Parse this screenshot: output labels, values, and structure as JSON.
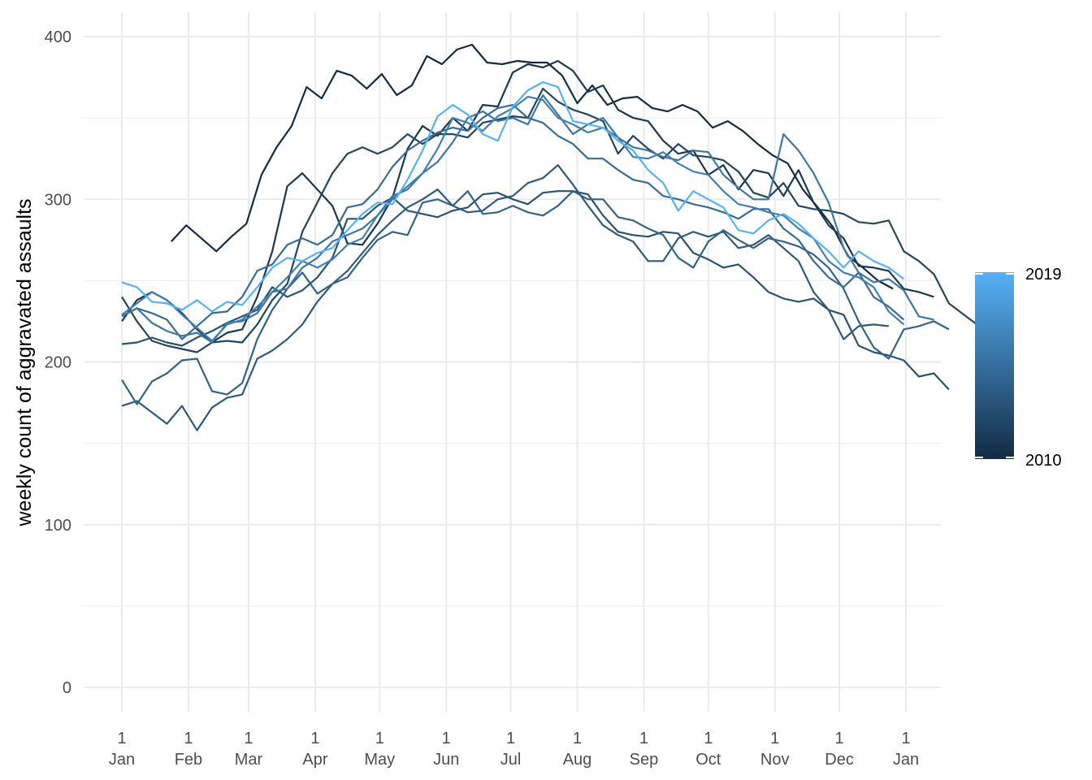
{
  "chart_data": {
    "type": "line",
    "title": "",
    "xlabel": "",
    "ylabel": "weekly count of aggravated assaults",
    "ylim": [
      0,
      400
    ],
    "y_ticks": [
      0,
      100,
      200,
      300,
      400
    ],
    "x_unit": "day of year",
    "xlim": [
      1,
      366
    ],
    "x_ticks": [
      {
        "x": 1,
        "day": "1",
        "month": "Jan"
      },
      {
        "x": 32,
        "day": "1",
        "month": "Feb"
      },
      {
        "x": 60,
        "day": "1",
        "month": "Mar"
      },
      {
        "x": 91,
        "day": "1",
        "month": "Apr"
      },
      {
        "x": 121,
        "day": "1",
        "month": "May"
      },
      {
        "x": 152,
        "day": "1",
        "month": "Jun"
      },
      {
        "x": 182,
        "day": "1",
        "month": "Jul"
      },
      {
        "x": 213,
        "day": "1",
        "month": "Aug"
      },
      {
        "x": 244,
        "day": "1",
        "month": "Sep"
      },
      {
        "x": 274,
        "day": "1",
        "month": "Oct"
      },
      {
        "x": 305,
        "day": "1",
        "month": "Nov"
      },
      {
        "x": 335,
        "day": "1",
        "month": "Dec"
      },
      {
        "x": 366,
        "day": "1",
        "month": "Jan"
      }
    ],
    "grid": true,
    "legend": {
      "type": "colorbar",
      "position": "right",
      "min_label": "2010",
      "max_label": "2019",
      "color_low": "#132B43",
      "color_high": "#56B1F7"
    },
    "series": [
      {
        "year": 2010,
        "color": "#132B43",
        "x_start": 24,
        "x_step": 7,
        "values": [
          274,
          284,
          276,
          268,
          277,
          285,
          315,
          332,
          345,
          369,
          362,
          379,
          376,
          368,
          377,
          364,
          370,
          388,
          383,
          392,
          395,
          384,
          383,
          385,
          384,
          384,
          376,
          359,
          370,
          358,
          362,
          363,
          356,
          354,
          358,
          354,
          344,
          348,
          342,
          334,
          327,
          322,
          306,
          295,
          283,
          265,
          258,
          250,
          245
        ]
      },
      {
        "year": 2011,
        "color": "#1B3850",
        "x_start": 1,
        "x_step": 7,
        "values": [
          225,
          238,
          243,
          238,
          230,
          220,
          212,
          218,
          220,
          240,
          268,
          308,
          316,
          306,
          296,
          273,
          272,
          285,
          301,
          331,
          345,
          339,
          350,
          342,
          358,
          357,
          378,
          383,
          381,
          385,
          379,
          366,
          370,
          355,
          350,
          348,
          336,
          328,
          330,
          315,
          321,
          306,
          318,
          316,
          302,
          318,
          298,
          284,
          276,
          259,
          258,
          256,
          245,
          243,
          240
        ]
      },
      {
        "year": 2012,
        "color": "#23455E",
        "x_start": 1,
        "x_step": 7,
        "values": [
          240,
          225,
          213,
          210,
          208,
          206,
          212,
          213,
          212,
          223,
          238,
          248,
          280,
          298,
          316,
          328,
          332,
          328,
          332,
          340,
          334,
          340,
          340,
          338,
          347,
          349,
          351,
          350,
          368,
          360,
          355,
          352,
          348,
          328,
          339,
          331,
          325,
          334,
          327,
          326,
          324,
          317,
          304,
          301,
          310,
          296,
          294,
          293,
          291,
          286,
          285,
          287,
          268,
          262,
          254,
          236,
          229,
          222
        ]
      },
      {
        "year": 2013,
        "color": "#2B526E",
        "x_start": 1,
        "x_step": 7,
        "values": [
          211,
          212,
          215,
          212,
          210,
          215,
          219,
          224,
          228,
          232,
          246,
          240,
          244,
          252,
          264,
          288,
          288,
          296,
          301,
          293,
          291,
          289,
          293,
          295,
          303,
          304,
          300,
          297,
          304,
          305,
          305,
          303,
          290,
          280,
          278,
          277,
          280,
          279,
          267,
          263,
          258,
          260,
          252,
          243,
          239,
          237,
          239,
          232,
          229,
          210,
          206,
          204,
          201,
          191,
          193,
          183
        ]
      },
      {
        "year": 2014,
        "color": "#2F5A78",
        "x_start": 1,
        "x_step": 7,
        "values": [
          173,
          176,
          169,
          162,
          173,
          158,
          172,
          178,
          180,
          202,
          207,
          214,
          223,
          237,
          248,
          256,
          267,
          278,
          287,
          295,
          300,
          306,
          296,
          292,
          293,
          300,
          302,
          310,
          313,
          321,
          309,
          296,
          284,
          278,
          274,
          262,
          262,
          276,
          280,
          277,
          280,
          270,
          272,
          278,
          270,
          262,
          243,
          232,
          214,
          222,
          223,
          222
        ]
      },
      {
        "year": 2015,
        "color": "#336385",
        "x_start": 1,
        "x_step": 7,
        "values": [
          189,
          174,
          188,
          193,
          201,
          202,
          182,
          180,
          187,
          214,
          232,
          245,
          255,
          242,
          248,
          252,
          264,
          275,
          280,
          278,
          298,
          300,
          296,
          305,
          291,
          292,
          296,
          292,
          290,
          296,
          305,
          300,
          300,
          289,
          287,
          282,
          278,
          264,
          258,
          274,
          281,
          275,
          270,
          276,
          274,
          271,
          266,
          258,
          245,
          225,
          209,
          202,
          220,
          222,
          225,
          220
        ]
      },
      {
        "year": 2016,
        "color": "#386C92",
        "x_start": 1,
        "x_step": 7,
        "values": [
          228,
          233,
          230,
          226,
          214,
          222,
          230,
          231,
          240,
          256,
          260,
          272,
          276,
          272,
          278,
          295,
          297,
          306,
          320,
          330,
          336,
          341,
          344,
          342,
          350,
          356,
          358,
          350,
          347,
          339,
          334,
          325,
          325,
          318,
          312,
          310,
          302,
          300,
          297,
          295,
          292,
          288,
          294,
          294,
          282,
          275,
          262,
          252,
          246,
          255,
          240,
          234,
          226
        ]
      },
      {
        "year": 2017,
        "color": "#3D76A0",
        "x_start": 1,
        "x_step": 7,
        "values": [
          228,
          233,
          224,
          219,
          216,
          218,
          212,
          224,
          225,
          230,
          243,
          245,
          258,
          264,
          274,
          278,
          282,
          290,
          302,
          306,
          316,
          323,
          335,
          350,
          354,
          348,
          350,
          346,
          364,
          352,
          340,
          346,
          350,
          338,
          332,
          330,
          326,
          324,
          330,
          329,
          315,
          307,
          300,
          300,
          340,
          330,
          316,
          298,
          270,
          255,
          249,
          251,
          244,
          228,
          226
        ]
      },
      {
        "year": 2018,
        "color": "#4180AE",
        "x_start": 1,
        "x_step": 7,
        "values": [
          229,
          236,
          243,
          238,
          229,
          221,
          213,
          223,
          226,
          234,
          243,
          252,
          262,
          258,
          263,
          272,
          276,
          290,
          300,
          308,
          316,
          331,
          350,
          347,
          342,
          351,
          356,
          363,
          361,
          350,
          346,
          341,
          344,
          338,
          326,
          325,
          329,
          322,
          317,
          315,
          305,
          297,
          295,
          292,
          290,
          282,
          276,
          262,
          255,
          252,
          246,
          231,
          223
        ]
      },
      {
        "year": 2019,
        "color": "#56B1F7",
        "x_start": 1,
        "x_step": 7,
        "values": [
          249,
          246,
          237,
          236,
          232,
          238,
          231,
          237,
          235,
          246,
          258,
          264,
          262,
          267,
          270,
          281,
          291,
          298,
          297,
          312,
          330,
          351,
          358,
          352,
          340,
          336,
          357,
          367,
          372,
          369,
          348,
          346,
          344,
          336,
          330,
          318,
          310,
          293,
          305,
          300,
          295,
          281,
          279,
          287,
          291,
          285,
          276,
          268,
          258,
          268,
          262,
          258,
          251
        ]
      }
    ]
  }
}
